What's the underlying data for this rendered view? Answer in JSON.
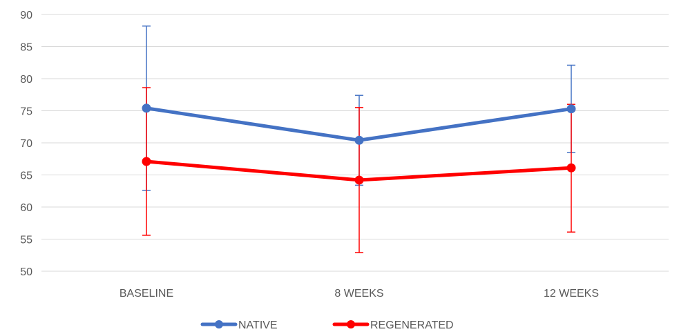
{
  "chart_data": {
    "type": "line",
    "title": "",
    "xlabel": "",
    "ylabel": "",
    "categories": [
      "BASELINE",
      "8 WEEKS",
      "12 WEEKS"
    ],
    "ylim": [
      50,
      90
    ],
    "yticks": [
      50,
      55,
      60,
      65,
      70,
      75,
      80,
      85,
      90
    ],
    "grid": true,
    "legend_position": "bottom",
    "series": [
      {
        "name": "NATIVE",
        "color": "#4472c4",
        "values": [
          75.4,
          70.4,
          75.3
        ],
        "error_upper": [
          88.2,
          77.4,
          82.1
        ],
        "error_lower": [
          62.6,
          63.4,
          68.5
        ]
      },
      {
        "name": "REGENERATED",
        "color": "#ff0000",
        "values": [
          67.1,
          64.2,
          66.1
        ],
        "error_upper": [
          78.6,
          75.5,
          76.0
        ],
        "error_lower": [
          55.6,
          52.9,
          56.1
        ]
      }
    ]
  }
}
